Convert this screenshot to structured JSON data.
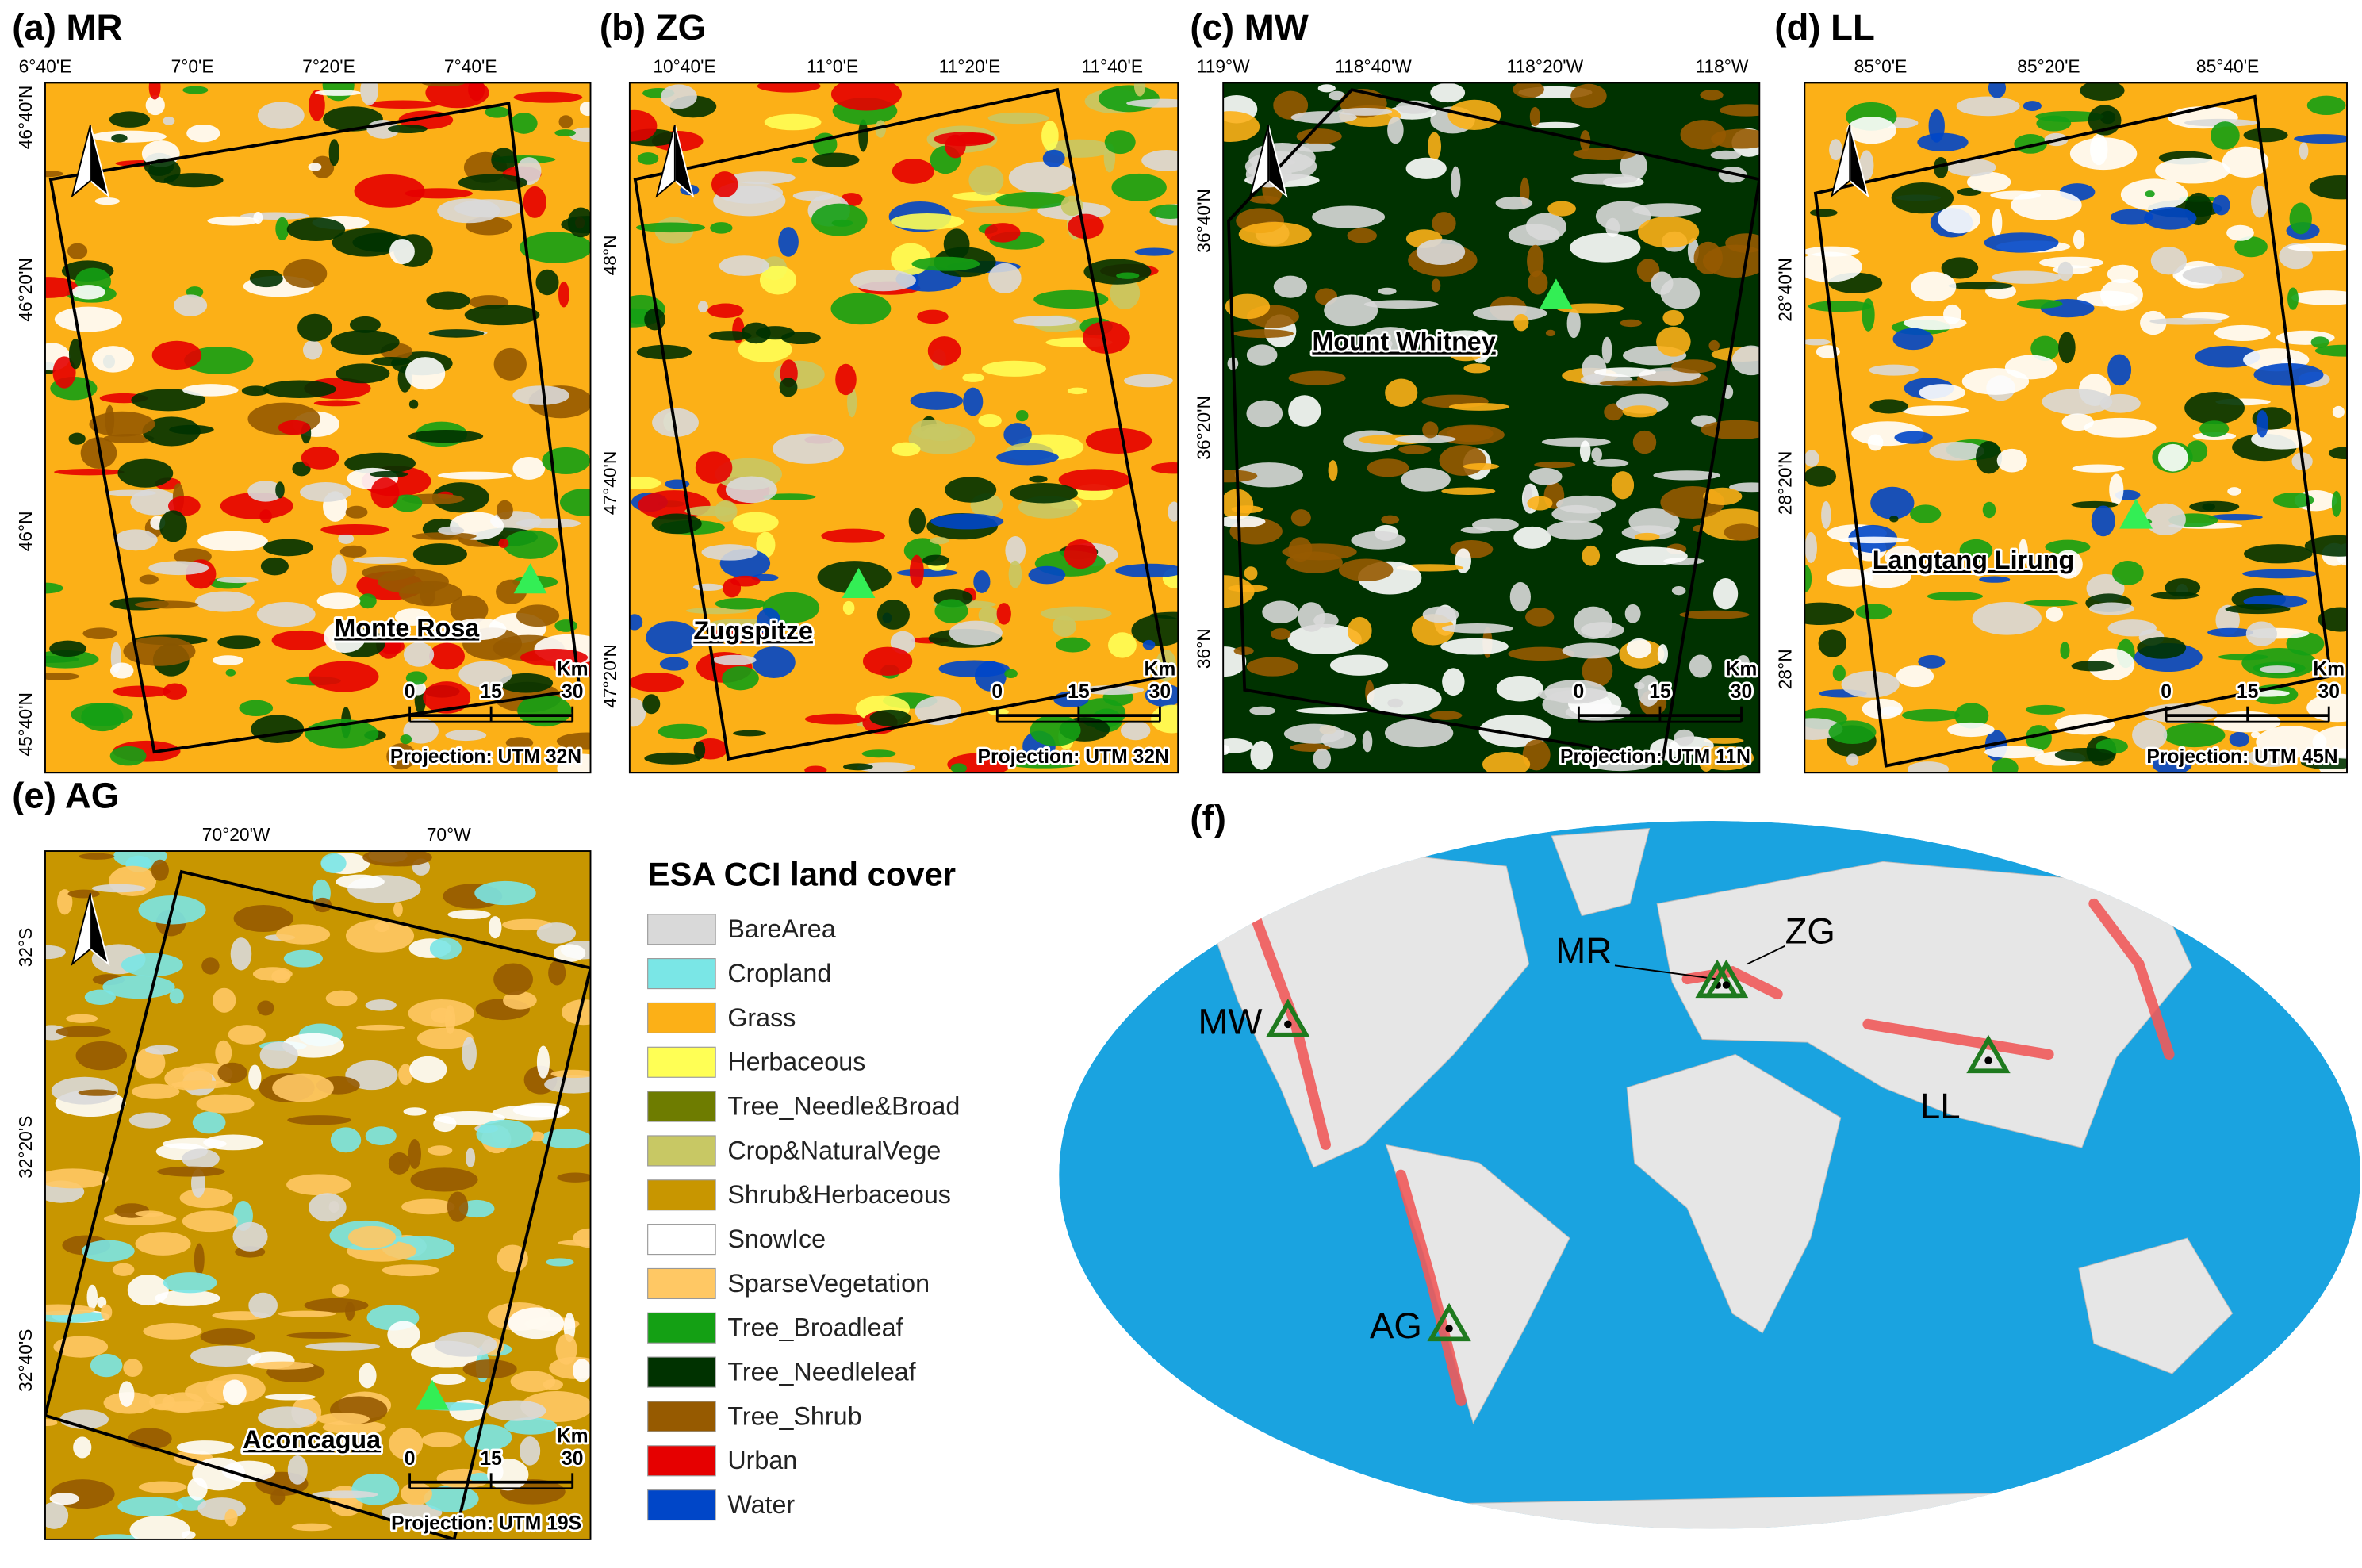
{
  "panels": [
    {
      "label": "(a) MR",
      "top_ticks": [
        "6°40'E",
        "7°0'E",
        "7°20'E",
        "7°40'E"
      ],
      "left_ticks": [
        "46°40'N",
        "46°20'N",
        "46°N",
        "45°40'N"
      ],
      "site": "Monte Rosa",
      "scale_unit": "Km",
      "scale_ticks": [
        0,
        15,
        30
      ],
      "projection": "Projection: UTM 32N"
    },
    {
      "label": "(b) ZG",
      "top_ticks": [
        "10°40'E",
        "11°0'E",
        "11°20'E",
        "11°40'E"
      ],
      "left_ticks": [
        "48°N",
        "47°40'N",
        "47°20'N"
      ],
      "site": "Zugspitze",
      "scale_unit": "Km",
      "scale_ticks": [
        0,
        15,
        30
      ],
      "projection": "Projection: UTM 32N"
    },
    {
      "label": "(c) MW",
      "top_ticks": [
        "119°W",
        "118°40'W",
        "118°20'W",
        "118°W"
      ],
      "left_ticks": [
        "36°40'N",
        "36°20'N",
        "36°N"
      ],
      "site": "Mount Whitney",
      "scale_unit": "Km",
      "scale_ticks": [
        0,
        15,
        30
      ],
      "projection": "Projection: UTM 11N"
    },
    {
      "label": "(d) LL",
      "top_ticks": [
        "85°0'E",
        "85°20'E",
        "85°40'E"
      ],
      "left_ticks": [
        "28°40'N",
        "28°20'N",
        "28°N"
      ],
      "site": "Langtang Lirung",
      "scale_unit": "Km",
      "scale_ticks": [
        0,
        15,
        30
      ],
      "projection": "Projection: UTM 45N"
    },
    {
      "label": "(e) AG",
      "top_ticks": [
        "70°20'W",
        "70°W"
      ],
      "left_ticks": [
        "32°S",
        "32°20'S",
        "32°40'S"
      ],
      "site": "Aconcagua",
      "scale_unit": "Km",
      "scale_ticks": [
        0,
        15,
        30
      ],
      "projection": "Projection: UTM 19S"
    }
  ],
  "legend": {
    "title": "ESA CCI land cover",
    "items": [
      {
        "label": "BareArea",
        "color": "#d9d9d9"
      },
      {
        "label": "Cropland",
        "color": "#7ae6e6"
      },
      {
        "label": "Grass",
        "color": "#fcb017"
      },
      {
        "label": "Herbaceous",
        "color": "#ffff55"
      },
      {
        "label": "Tree_Needle&Broad",
        "color": "#6e7c00"
      },
      {
        "label": "Crop&NaturalVege",
        "color": "#c8c864"
      },
      {
        "label": "Shrub&Herbaceous",
        "color": "#c89600"
      },
      {
        "label": "SnowIce",
        "color": "#ffffff"
      },
      {
        "label": "SparseVegetation",
        "color": "#ffc864"
      },
      {
        "label": "Tree_Broadleaf",
        "color": "#14a014"
      },
      {
        "label": "Tree_Needleleaf",
        "color": "#003200"
      },
      {
        "label": "Tree_Shrub",
        "color": "#965a00"
      },
      {
        "label": "Urban",
        "color": "#e60000"
      },
      {
        "label": "Water",
        "color": "#0046c8"
      }
    ]
  },
  "world": {
    "label": "(f)",
    "sites": [
      "MR",
      "ZG",
      "MW",
      "LL",
      "AG"
    ]
  }
}
